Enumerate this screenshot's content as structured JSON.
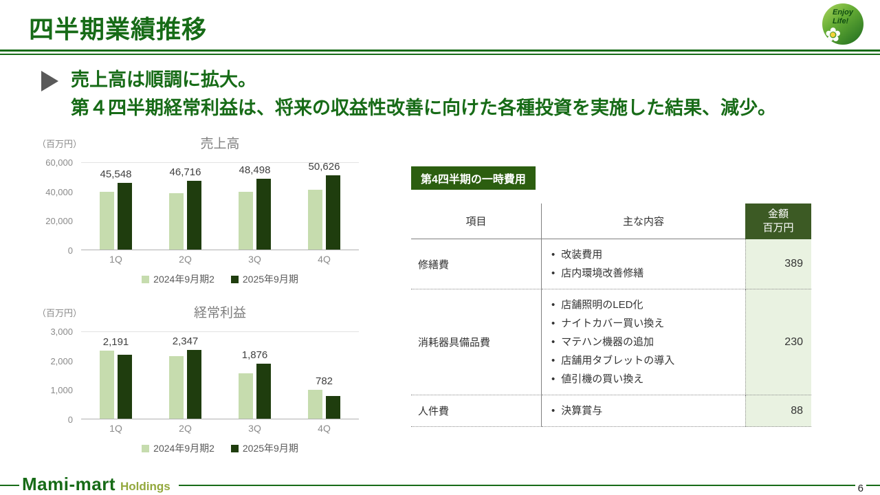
{
  "header": {
    "title": "四半期業績推移",
    "logo_line1": "Enjoy",
    "logo_line2": "Life!"
  },
  "message": {
    "line1": "売上高は順調に拡大。",
    "line2": "第４四半期経常利益は、将来の収益性改善に向けた各種投資を実施した結果、減少。"
  },
  "chart_data": [
    {
      "type": "bar",
      "title": "売上高",
      "unit_label": "（百万円）",
      "categories": [
        "1Q",
        "2Q",
        "3Q",
        "4Q"
      ],
      "series": [
        {
          "name": "2024年9月期2",
          "color": "#c6dcae",
          "values": [
            39500,
            38400,
            39500,
            40900
          ]
        },
        {
          "name": "2025年9月期",
          "color": "#1f3d0e",
          "values": [
            45548,
            46716,
            48498,
            50626
          ],
          "labels": [
            "45,548",
            "46,716",
            "48,498",
            "50,626"
          ]
        }
      ],
      "ylim": [
        0,
        60000
      ],
      "yticks": [
        0,
        20000,
        40000,
        60000
      ],
      "ytick_labels": [
        "0",
        "20,000",
        "40,000",
        "60,000"
      ],
      "legend_position": "bottom",
      "grid": false
    },
    {
      "type": "bar",
      "title": "経常利益",
      "unit_label": "（百万円）",
      "categories": [
        "1Q",
        "2Q",
        "3Q",
        "4Q"
      ],
      "series": [
        {
          "name": "2024年9月期2",
          "color": "#c6dcae",
          "values": [
            2330,
            2140,
            1550,
            990
          ]
        },
        {
          "name": "2025年9月期",
          "color": "#1f3d0e",
          "values": [
            2191,
            2347,
            1876,
            782
          ],
          "labels": [
            "2,191",
            "2,347",
            "1,876",
            "782"
          ]
        }
      ],
      "ylim": [
        0,
        3000
      ],
      "yticks": [
        0,
        1000,
        2000,
        3000
      ],
      "ytick_labels": [
        "0",
        "1,000",
        "2,000",
        "3,000"
      ],
      "legend_position": "bottom",
      "grid": false
    }
  ],
  "one_time_costs": {
    "badge": "第4四半期の一時費用",
    "columns": {
      "item": "項目",
      "contents": "主な内容",
      "amount_line1": "金額",
      "amount_line2": "百万円"
    },
    "rows": [
      {
        "item": "修繕費",
        "contents": [
          "改装費用",
          "店内環境改善修繕"
        ],
        "amount": "389"
      },
      {
        "item": "消耗器具備品費",
        "contents": [
          "店舗照明のLED化",
          "ナイトカバー買い換え",
          "マテハン機器の追加",
          "店舗用タブレットの導入",
          "値引機の買い換え"
        ],
        "amount": "230"
      },
      {
        "item": "人件費",
        "contents": [
          "決算賞与"
        ],
        "amount": "88"
      }
    ]
  },
  "footer": {
    "brand": "Mami-mart",
    "brand_suffix": "Holdings",
    "page_number": "6"
  },
  "colors": {
    "accent_green": "#176b17",
    "bar_light": "#c6dcae",
    "bar_dark": "#1f3d0e",
    "badge_bg": "#2c5e10",
    "table_header_bg": "#3c5a24",
    "amount_col_bg": "#e9f2e1"
  }
}
